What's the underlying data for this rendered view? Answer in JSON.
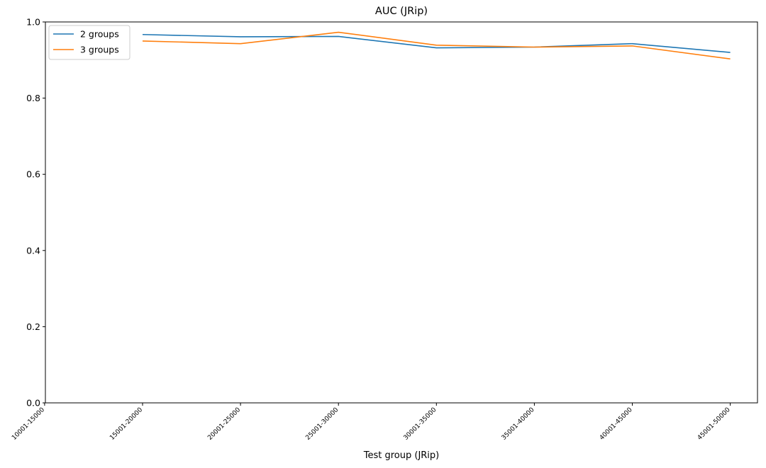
{
  "chart_data": {
    "type": "line",
    "title": "AUC (JRip)",
    "xlabel": "Test group (JRip)",
    "ylabel": "",
    "categories": [
      "10001-15000",
      "15001-20000",
      "20001-25000",
      "25001-30000",
      "30001-35000",
      "35001-40000",
      "40001-45000",
      "45001-50000"
    ],
    "ylim": [
      0,
      1.0
    ],
    "yticks": [
      "0.0",
      "0.2",
      "0.4",
      "0.6",
      "0.8",
      "1.0"
    ],
    "grid": false,
    "legend_position": "top-left",
    "series": [
      {
        "name": "2 groups",
        "color": "#1f77b4",
        "x": [
          "15001-20000",
          "20001-25000",
          "25001-30000",
          "30001-35000",
          "35001-40000",
          "40001-45000",
          "45001-50000"
        ],
        "values": [
          0.967,
          0.961,
          0.962,
          0.932,
          0.934,
          0.943,
          0.92
        ]
      },
      {
        "name": "3 groups",
        "color": "#ff7f0e",
        "x": [
          "15001-20000",
          "20001-25000",
          "25001-30000",
          "30001-35000",
          "35001-40000",
          "40001-45000",
          "45001-50000"
        ],
        "values": [
          0.95,
          0.943,
          0.973,
          0.939,
          0.934,
          0.937,
          0.903
        ]
      }
    ]
  }
}
